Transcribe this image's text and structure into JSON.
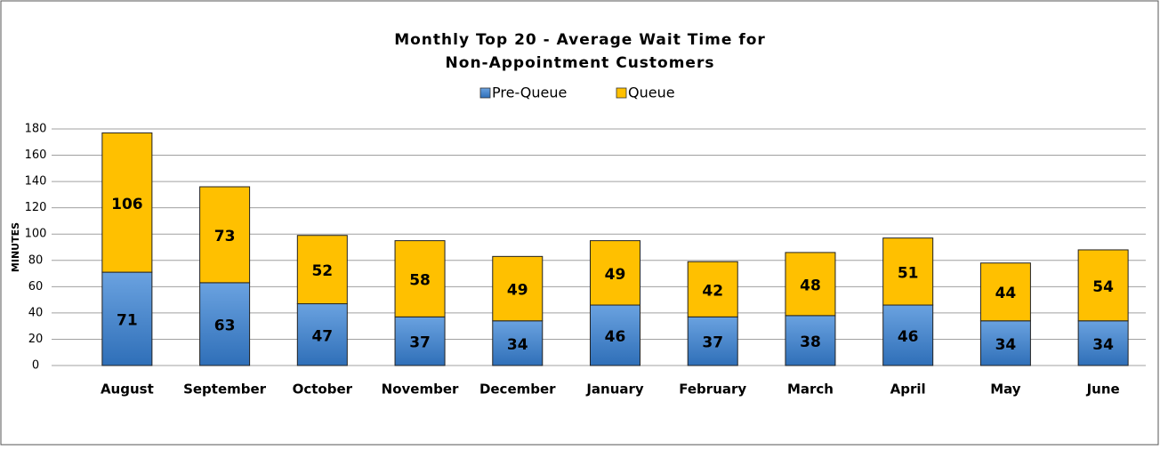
{
  "chart_data": {
    "type": "stacked_bar",
    "title": [
      "Monthly Top 20 - Average Wait Time for",
      "Non-Appointment Customers"
    ],
    "y_label": "MINUTES",
    "categories": [
      "August",
      "September",
      "October",
      "November",
      "December",
      "January",
      "February",
      "March",
      "April",
      "May",
      "June"
    ],
    "series": [
      {
        "name": "Pre-Queue",
        "color": "#4a88d0",
        "values": [
          71,
          63,
          47,
          37,
          34,
          46,
          37,
          38,
          46,
          34,
          34
        ]
      },
      {
        "name": "Queue",
        "color": "#ffc000",
        "values": [
          106,
          73,
          52,
          58,
          49,
          49,
          42,
          48,
          51,
          44,
          54
        ]
      }
    ],
    "ylim": [
      0,
      180
    ],
    "yticks": [
      0,
      20,
      40,
      60,
      80,
      100,
      120,
      140,
      160,
      180
    ],
    "grid": true,
    "legend": "top"
  }
}
